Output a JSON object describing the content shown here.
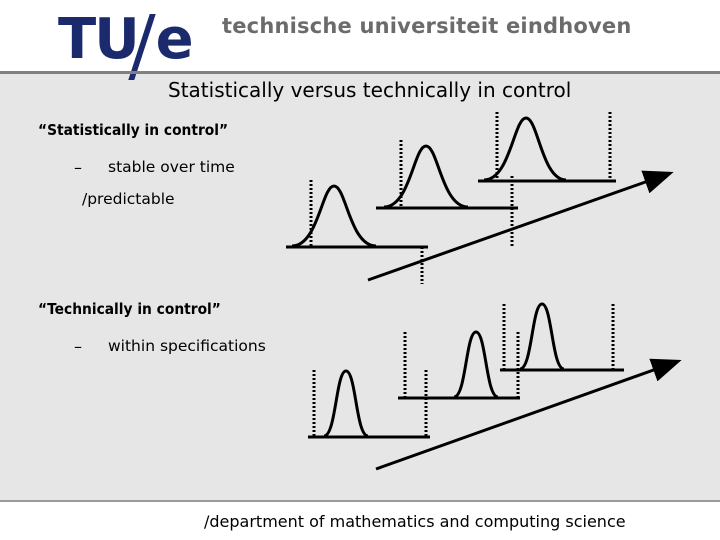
{
  "header": {
    "logo": "TU/e",
    "university": "technische universiteit eindhoven"
  },
  "slide": {
    "title": "Statistically versus technically in control",
    "sections": [
      {
        "heading": "“Statistically in control”",
        "bullet_marker": "–",
        "bullet": "stable over time",
        "continuation": "/predictable"
      },
      {
        "heading": "“Technically in control”",
        "bullet_marker": "–",
        "bullet": "within specifications"
      }
    ]
  },
  "footer": {
    "text": "/department of mathematics and computing science"
  },
  "colors": {
    "logo": "#1a2a6c",
    "university_text": "#6b6b6b",
    "slide_background": "#e6e6e6"
  }
}
